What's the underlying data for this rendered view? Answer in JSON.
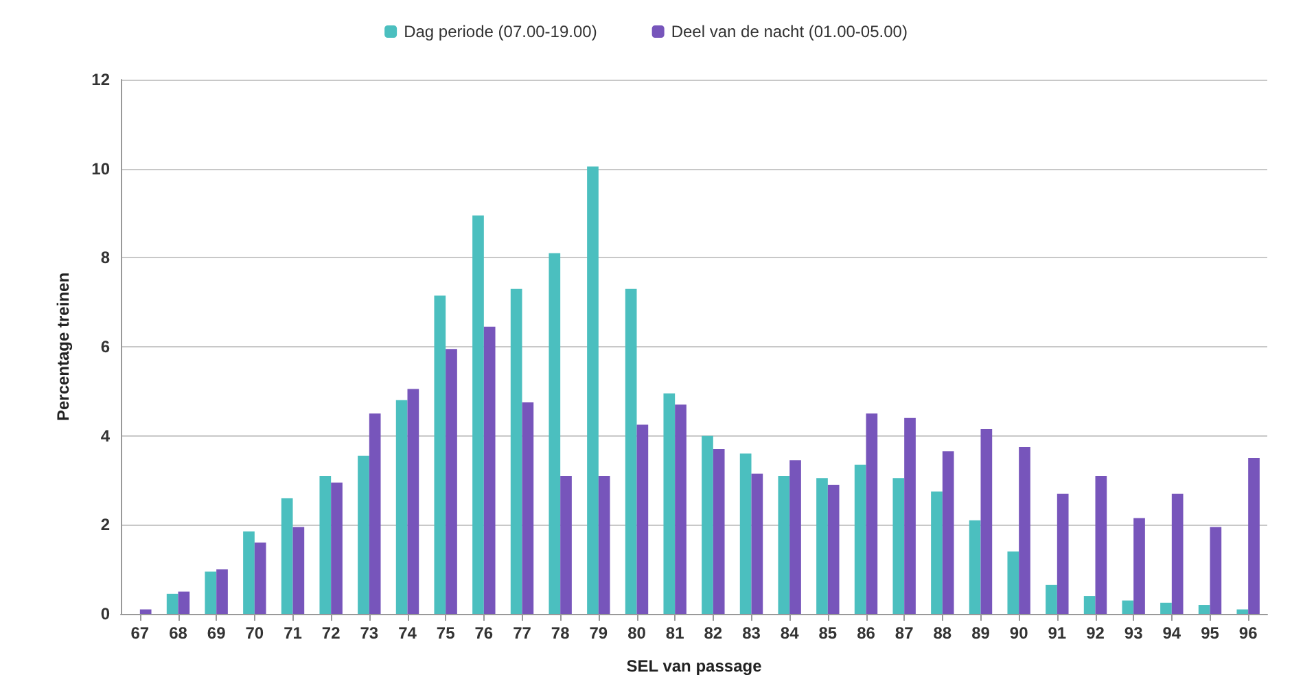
{
  "chart_data": {
    "type": "bar",
    "xlabel": "SEL van passage",
    "ylabel": "Percentage treinen",
    "categories": [
      "67",
      "68",
      "69",
      "70",
      "71",
      "72",
      "73",
      "74",
      "75",
      "76",
      "77",
      "78",
      "79",
      "80",
      "81",
      "82",
      "83",
      "84",
      "85",
      "86",
      "87",
      "88",
      "89",
      "90",
      "91",
      "92",
      "93",
      "94",
      "95",
      "96"
    ],
    "series": [
      {
        "name": "Dag periode (07.00-19.00)",
        "color": "#4bbfbf",
        "values": [
          0,
          0.45,
          0.95,
          1.85,
          2.6,
          3.1,
          3.55,
          4.8,
          7.15,
          8.95,
          7.3,
          8.1,
          10.05,
          7.3,
          4.95,
          4.0,
          3.6,
          3.1,
          3.05,
          3.35,
          3.05,
          2.75,
          2.1,
          1.4,
          0.65,
          0.4,
          0.3,
          0.25,
          0.2,
          0.1
        ]
      },
      {
        "name": "Deel van de nacht (01.00-05.00)",
        "color": "#7755bb",
        "values": [
          0.1,
          0.5,
          1.0,
          1.6,
          1.95,
          2.95,
          4.5,
          5.05,
          5.95,
          6.45,
          4.75,
          3.1,
          3.1,
          4.25,
          4.7,
          3.7,
          3.15,
          3.45,
          2.9,
          4.5,
          4.4,
          3.65,
          4.15,
          3.75,
          2.7,
          3.1,
          2.15,
          2.7,
          1.95,
          3.5
        ]
      }
    ],
    "ylim": [
      0,
      12
    ],
    "yticks": [
      0,
      2,
      4,
      6,
      8,
      10,
      12
    ],
    "grid": "y",
    "legend": "top"
  }
}
